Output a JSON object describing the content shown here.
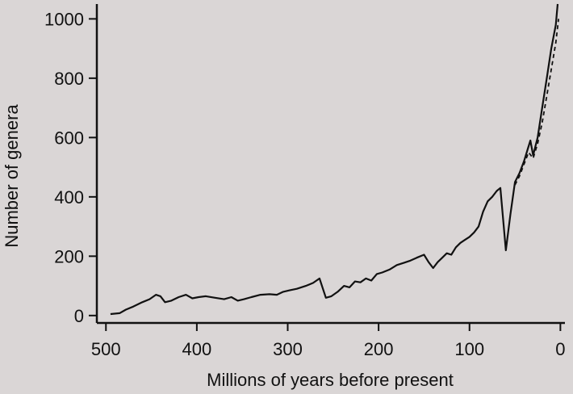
{
  "chart_data": {
    "type": "line",
    "title": "",
    "xlabel": "Millions of years before present",
    "ylabel": "Number of genera",
    "xlim": [
      510,
      -5
    ],
    "ylim": [
      -25,
      1050
    ],
    "x_reversed": true,
    "x_ticks": [
      500,
      400,
      300,
      200,
      100,
      0
    ],
    "y_ticks": [
      0,
      200,
      400,
      600,
      800,
      1000
    ],
    "grid": false,
    "legend": "none",
    "colors": {
      "background": "#dad6d6",
      "line": "#111111",
      "axis": "#111111"
    },
    "series": [
      {
        "style": "solid",
        "x": [
          495,
          485,
          478,
          470,
          460,
          452,
          445,
          440,
          435,
          428,
          420,
          412,
          405,
          398,
          390,
          380,
          370,
          362,
          355,
          348,
          340,
          330,
          320,
          312,
          305,
          298,
          290,
          280,
          272,
          265,
          258,
          252,
          245,
          238,
          232,
          226,
          220,
          214,
          208,
          202,
          196,
          188,
          180,
          172,
          165,
          158,
          150,
          145,
          140,
          135,
          130,
          125,
          120,
          115,
          110,
          105,
          100,
          95,
          90,
          85,
          80,
          75,
          70,
          66,
          60,
          55,
          50,
          45,
          40,
          36,
          33,
          30,
          25,
          20,
          15,
          10,
          5,
          3
        ],
        "y": [
          5,
          8,
          20,
          30,
          45,
          55,
          70,
          65,
          45,
          50,
          62,
          70,
          58,
          62,
          65,
          60,
          55,
          62,
          50,
          55,
          62,
          70,
          72,
          70,
          80,
          85,
          90,
          100,
          110,
          125,
          60,
          65,
          80,
          100,
          95,
          115,
          112,
          125,
          118,
          140,
          145,
          155,
          170,
          178,
          185,
          195,
          205,
          180,
          160,
          180,
          195,
          210,
          205,
          230,
          245,
          255,
          265,
          280,
          300,
          350,
          385,
          400,
          420,
          430,
          220,
          340,
          450,
          480,
          520,
          560,
          590,
          540,
          600,
          700,
          800,
          900,
          980,
          1050
        ]
      },
      {
        "style": "dashed",
        "x": [
          50,
          45,
          40,
          35,
          30,
          25,
          20,
          15,
          10,
          5,
          2
        ],
        "y": [
          440,
          470,
          510,
          550,
          530,
          580,
          650,
          740,
          830,
          920,
          1000
        ]
      }
    ]
  }
}
